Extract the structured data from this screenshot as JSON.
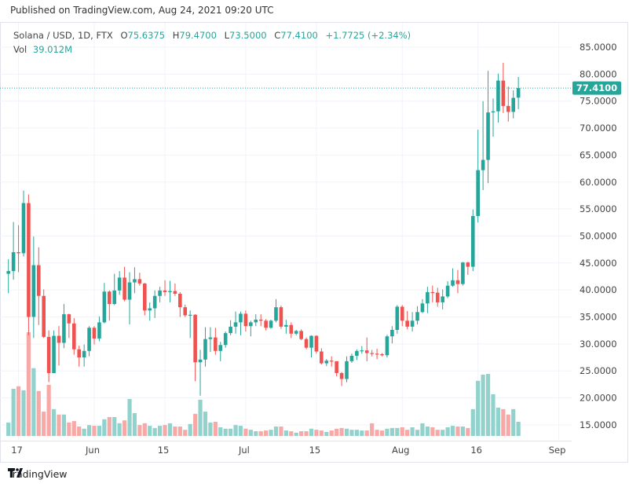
{
  "header": {
    "published": "Published on TradingView.com, Aug 24, 2021 09:20 UTC"
  },
  "legend": {
    "symbol": "Solana / USD, 1D, FTX",
    "o_label": "O",
    "o_value": "75.6375",
    "h_label": "H",
    "h_value": "79.4700",
    "l_label": "L",
    "l_value": "73.5000",
    "c_label": "C",
    "c_value": "77.4100",
    "change": "+1.7725 (+2.34%)",
    "vol_label": "Vol",
    "vol_value": "39.012M"
  },
  "footer": {
    "brand": "TradingView"
  },
  "colors": {
    "up": "#26a69a",
    "down": "#ef5350",
    "up_vol": "#92d2cc",
    "down_vol": "#f7a9a7",
    "grid": "#f0f3fa"
  },
  "chart_data": {
    "type": "candlestick",
    "title": "Solana / USD, 1D, FTX",
    "x_start": "2021-05-15",
    "x_end": "2021-08-24",
    "ylim": [
      15,
      85
    ],
    "y_ticks": [
      "85.0000",
      "80.0000",
      "75.0000",
      "70.0000",
      "65.0000",
      "60.0000",
      "55.0000",
      "50.0000",
      "45.0000",
      "40.0000",
      "35.0000",
      "30.0000",
      "25.0000",
      "20.0000",
      "15.0000"
    ],
    "y_tick_values": [
      85,
      80,
      75,
      70,
      65,
      60,
      55,
      50,
      45,
      40,
      35,
      30,
      25,
      20,
      15
    ],
    "x_ticks": [
      {
        "label": "17",
        "day_index": 2
      },
      {
        "label": "Jun",
        "day_index": 17
      },
      {
        "label": "15",
        "day_index": 31
      },
      {
        "label": "Jul",
        "day_index": 47
      },
      {
        "label": "15",
        "day_index": 61
      },
      {
        "label": "Aug",
        "day_index": 78
      },
      {
        "label": "16",
        "day_index": 93
      },
      {
        "label": "Sep",
        "day_index": 109
      }
    ],
    "last_price": "77.4100",
    "last_price_value": 77.41,
    "grid": true,
    "ohlc": [
      [
        43.0,
        45.7,
        39.4,
        43.5
      ],
      [
        43.5,
        52.6,
        41.9,
        47.0
      ],
      [
        47.0,
        52.0,
        43.3,
        46.8
      ],
      [
        46.8,
        58.4,
        46.2,
        56.1
      ],
      [
        56.1,
        57.7,
        31.6,
        35.0
      ],
      [
        35.0,
        49.9,
        31.1,
        44.6
      ],
      [
        44.6,
        47.9,
        33.5,
        38.9
      ],
      [
        38.9,
        40.1,
        31.1,
        31.3
      ],
      [
        31.3,
        32.5,
        22.9,
        24.6
      ],
      [
        24.6,
        32.5,
        24.6,
        31.5
      ],
      [
        31.5,
        33.3,
        26.0,
        30.2
      ],
      [
        30.2,
        37.4,
        29.2,
        35.5
      ],
      [
        35.5,
        35.6,
        31.1,
        33.8
      ],
      [
        33.8,
        34.8,
        28.0,
        29.0
      ],
      [
        29.0,
        29.7,
        25.8,
        27.5
      ],
      [
        27.5,
        29.9,
        25.8,
        28.7
      ],
      [
        28.7,
        33.3,
        27.7,
        33.0
      ],
      [
        33.0,
        33.3,
        29.9,
        31.0
      ],
      [
        31.0,
        35.1,
        30.5,
        34.0
      ],
      [
        34.0,
        41.3,
        33.8,
        39.7
      ],
      [
        39.7,
        39.9,
        34.3,
        37.4
      ],
      [
        37.4,
        43.0,
        37.2,
        39.9
      ],
      [
        39.9,
        43.5,
        39.1,
        42.3
      ],
      [
        42.3,
        44.3,
        37.9,
        38.2
      ],
      [
        38.2,
        43.3,
        33.6,
        41.4
      ],
      [
        41.4,
        44.2,
        39.4,
        42.0
      ],
      [
        42.0,
        43.2,
        40.8,
        41.2
      ],
      [
        41.2,
        41.3,
        35.3,
        36.2
      ],
      [
        36.2,
        37.7,
        34.3,
        36.6
      ],
      [
        36.6,
        39.9,
        34.8,
        38.9
      ],
      [
        38.9,
        40.6,
        37.7,
        39.9
      ],
      [
        39.9,
        41.8,
        38.9,
        39.6
      ],
      [
        39.6,
        41.7,
        37.7,
        39.8
      ],
      [
        39.8,
        41.2,
        38.9,
        39.3
      ],
      [
        39.3,
        39.6,
        35.0,
        36.8
      ],
      [
        36.8,
        37.3,
        35.0,
        35.3
      ],
      [
        35.3,
        36.2,
        31.1,
        35.4
      ],
      [
        35.4,
        35.5,
        23.1,
        26.6
      ],
      [
        26.6,
        28.9,
        20.4,
        27.1
      ],
      [
        27.1,
        33.1,
        25.8,
        30.9
      ],
      [
        30.9,
        33.1,
        28.5,
        31.2
      ],
      [
        31.2,
        33.0,
        28.0,
        28.7
      ],
      [
        28.7,
        30.4,
        26.8,
        29.8
      ],
      [
        29.8,
        32.3,
        29.3,
        32.0
      ],
      [
        32.0,
        34.4,
        31.6,
        33.2
      ],
      [
        33.2,
        36.0,
        31.9,
        34.0
      ],
      [
        34.0,
        36.0,
        31.6,
        35.6
      ],
      [
        35.6,
        36.2,
        32.3,
        33.3
      ],
      [
        33.3,
        34.3,
        31.4,
        34.0
      ],
      [
        34.0,
        35.5,
        33.3,
        34.5
      ],
      [
        34.5,
        35.5,
        33.3,
        34.3
      ],
      [
        34.3,
        34.6,
        32.5,
        33.0
      ],
      [
        33.0,
        34.5,
        32.8,
        34.3
      ],
      [
        34.3,
        38.3,
        34.0,
        36.8
      ],
      [
        36.8,
        37.1,
        32.8,
        33.2
      ],
      [
        33.2,
        34.5,
        31.9,
        33.5
      ],
      [
        33.5,
        34.0,
        31.1,
        31.9
      ],
      [
        31.9,
        32.6,
        31.6,
        32.4
      ],
      [
        32.4,
        32.7,
        30.7,
        30.9
      ],
      [
        30.9,
        31.2,
        29.0,
        29.3
      ],
      [
        29.3,
        31.6,
        27.5,
        31.5
      ],
      [
        31.5,
        31.6,
        28.2,
        28.6
      ],
      [
        28.6,
        29.2,
        26.2,
        26.4
      ],
      [
        26.4,
        27.2,
        25.9,
        26.9
      ],
      [
        26.9,
        27.7,
        25.8,
        26.8
      ],
      [
        26.8,
        26.8,
        24.0,
        24.6
      ],
      [
        24.6,
        24.8,
        22.2,
        23.5
      ],
      [
        23.5,
        27.7,
        22.9,
        26.8
      ],
      [
        26.8,
        28.2,
        26.5,
        27.8
      ],
      [
        27.8,
        29.0,
        27.0,
        28.7
      ],
      [
        28.7,
        29.6,
        28.2,
        28.8
      ],
      [
        28.8,
        31.2,
        26.8,
        28.3
      ],
      [
        28.3,
        28.9,
        27.7,
        28.2
      ],
      [
        28.2,
        29.1,
        27.2,
        28.1
      ],
      [
        28.1,
        28.3,
        27.7,
        27.9
      ],
      [
        27.9,
        31.7,
        27.5,
        31.4
      ],
      [
        31.4,
        33.3,
        30.1,
        32.6
      ],
      [
        32.6,
        37.2,
        31.9,
        36.9
      ],
      [
        36.9,
        37.2,
        33.3,
        34.3
      ],
      [
        34.3,
        36.1,
        32.7,
        33.2
      ],
      [
        33.2,
        35.9,
        32.3,
        34.3
      ],
      [
        34.3,
        37.0,
        33.6,
        35.9
      ],
      [
        35.9,
        38.3,
        35.7,
        37.5
      ],
      [
        37.5,
        40.6,
        35.7,
        39.6
      ],
      [
        39.6,
        40.8,
        37.7,
        39.5
      ],
      [
        39.5,
        40.4,
        36.9,
        37.7
      ],
      [
        37.7,
        40.1,
        36.4,
        38.8
      ],
      [
        38.8,
        41.6,
        38.5,
        40.8
      ],
      [
        40.8,
        44.0,
        40.6,
        41.8
      ],
      [
        41.8,
        43.7,
        39.4,
        41.1
      ],
      [
        41.1,
        45.2,
        40.8,
        45.1
      ],
      [
        45.1,
        45.2,
        42.8,
        44.3
      ],
      [
        44.3,
        54.9,
        43.5,
        53.7
      ],
      [
        53.7,
        69.7,
        52.5,
        62.2
      ],
      [
        62.2,
        75.0,
        58.5,
        64.1
      ],
      [
        64.1,
        80.6,
        59.8,
        72.9
      ],
      [
        72.9,
        75.5,
        68.4,
        73.1
      ],
      [
        73.1,
        80.1,
        71.0,
        78.8
      ],
      [
        78.8,
        82.1,
        72.8,
        74.1
      ],
      [
        74.1,
        77.7,
        71.2,
        73.0
      ],
      [
        73.0,
        77.0,
        71.8,
        75.6
      ],
      [
        75.6375,
        79.47,
        73.5,
        77.41
      ]
    ],
    "volume_millions": [
      36.9,
      130,
      137,
      126,
      286,
      187,
      124,
      67,
      141,
      74,
      59,
      59,
      37,
      41,
      26,
      20,
      30,
      28,
      28,
      46,
      52,
      52,
      35,
      43,
      102,
      63,
      30,
      35,
      28,
      22,
      28,
      30,
      35,
      26,
      26,
      17,
      33,
      61,
      100,
      67,
      37,
      39,
      24,
      20,
      20,
      30,
      28,
      20,
      17,
      13,
      13,
      15,
      17,
      26,
      26,
      15,
      13,
      9,
      13,
      13,
      20,
      17,
      15,
      11,
      15,
      20,
      22,
      20,
      17,
      17,
      15,
      15,
      35,
      17,
      15,
      20,
      22,
      22,
      24,
      17,
      24,
      17,
      35,
      26,
      24,
      17,
      17,
      24,
      28,
      26,
      26,
      22,
      74,
      152,
      169,
      171,
      115,
      78,
      74,
      59,
      74,
      39.012
    ]
  }
}
